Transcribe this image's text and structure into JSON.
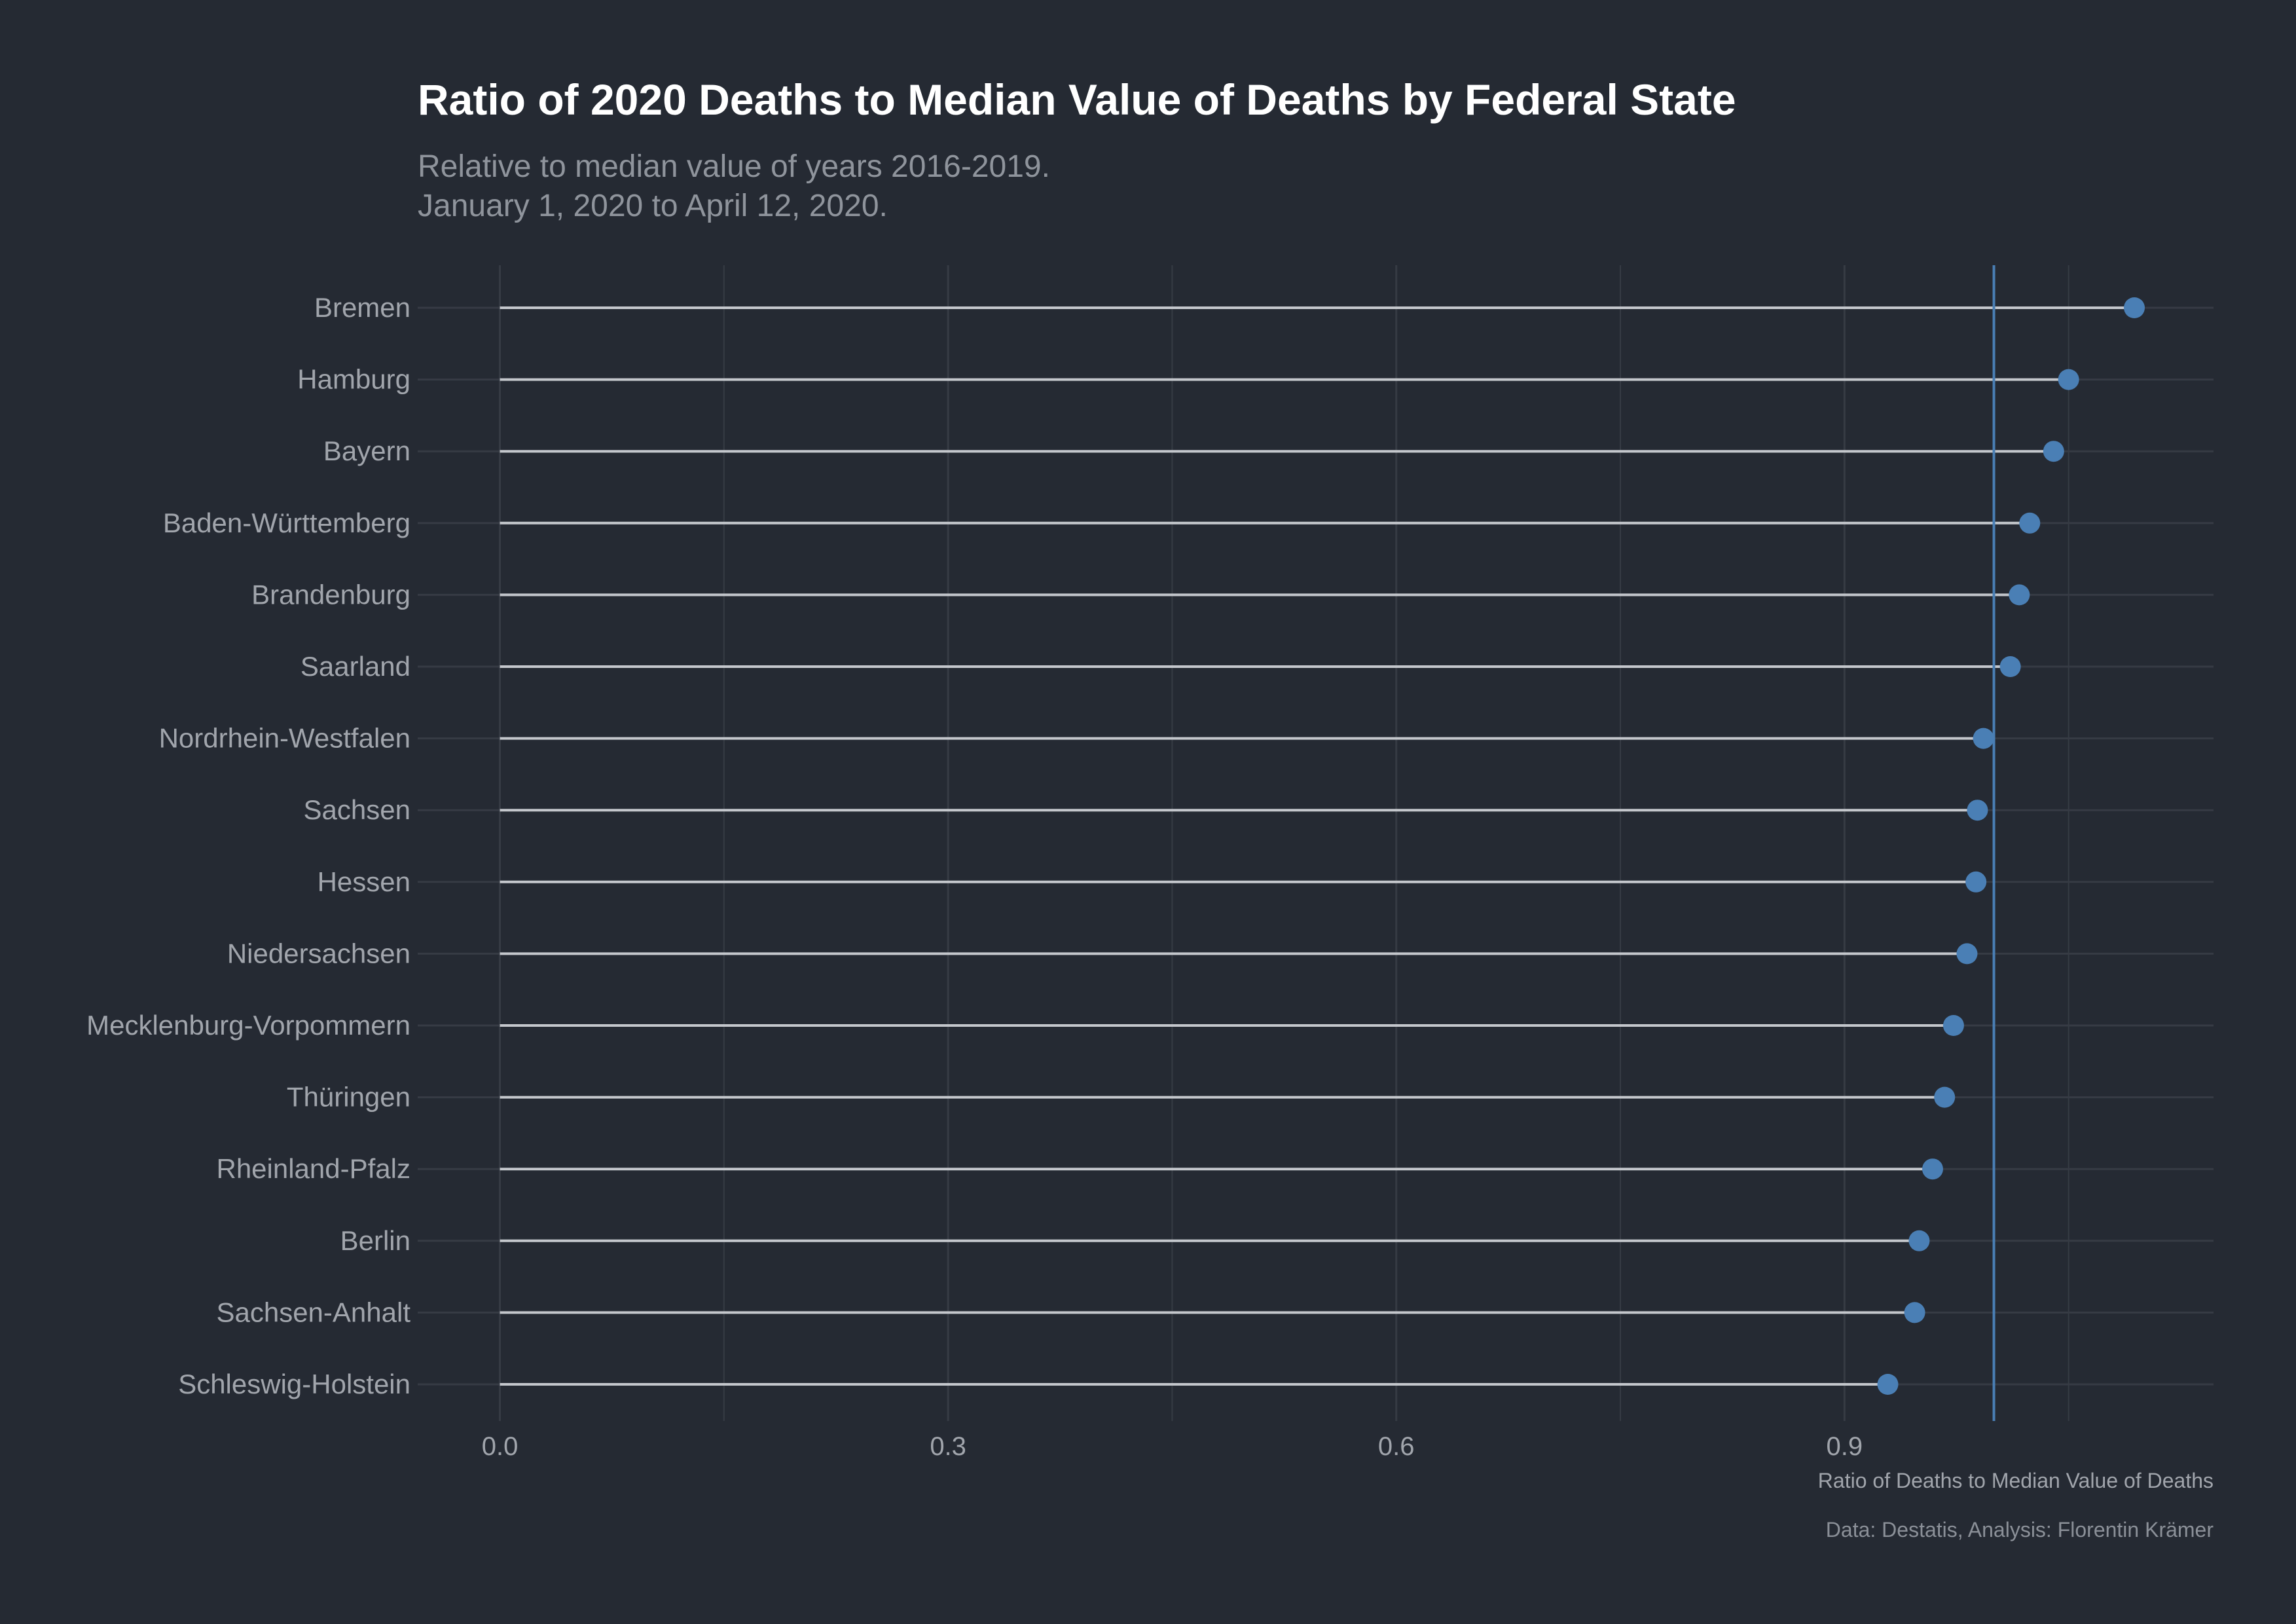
{
  "chart_data": {
    "type": "lollipop",
    "title": "Ratio of 2020 Deaths to Median Value of Deaths by Federal State",
    "subtitle": [
      "Relative to median value of years 2016-2019.",
      "January 1, 2020 to April 12, 2020."
    ],
    "xlabel": "Ratio of Deaths to Median Value of Deaths",
    "ylabel": "",
    "caption": "Data: Destatis, Analysis: Florentin Krämer",
    "xlim": [
      -0.055,
      1.147
    ],
    "x_ticks": [
      0.0,
      0.3,
      0.6,
      0.9
    ],
    "x_tick_labels": [
      "0.0",
      "0.3",
      "0.6",
      "0.9"
    ],
    "reference_line": 1.0,
    "grid": true,
    "categories": [
      "Bremen",
      "Hamburg",
      "Bayern",
      "Baden-Württemberg",
      "Brandenburg",
      "Saarland",
      "Nordrhein-Westfalen",
      "Sachsen",
      "Hessen",
      "Niedersachsen",
      "Mecklenburg-Vorpommern",
      "Thüringen",
      "Rheinland-Pfalz",
      "Berlin",
      "Sachsen-Anhalt",
      "Schleswig-Holstein"
    ],
    "values": [
      1.094,
      1.05,
      1.04,
      1.024,
      1.017,
      1.011,
      0.993,
      0.989,
      0.988,
      0.982,
      0.973,
      0.967,
      0.959,
      0.95,
      0.947,
      0.929
    ]
  },
  "colors": {
    "background": "#252a33",
    "stem": "#c4c7cc",
    "point": "#4a7fb5",
    "reference_line": "#4a7fb5",
    "grid": "#363b44"
  }
}
